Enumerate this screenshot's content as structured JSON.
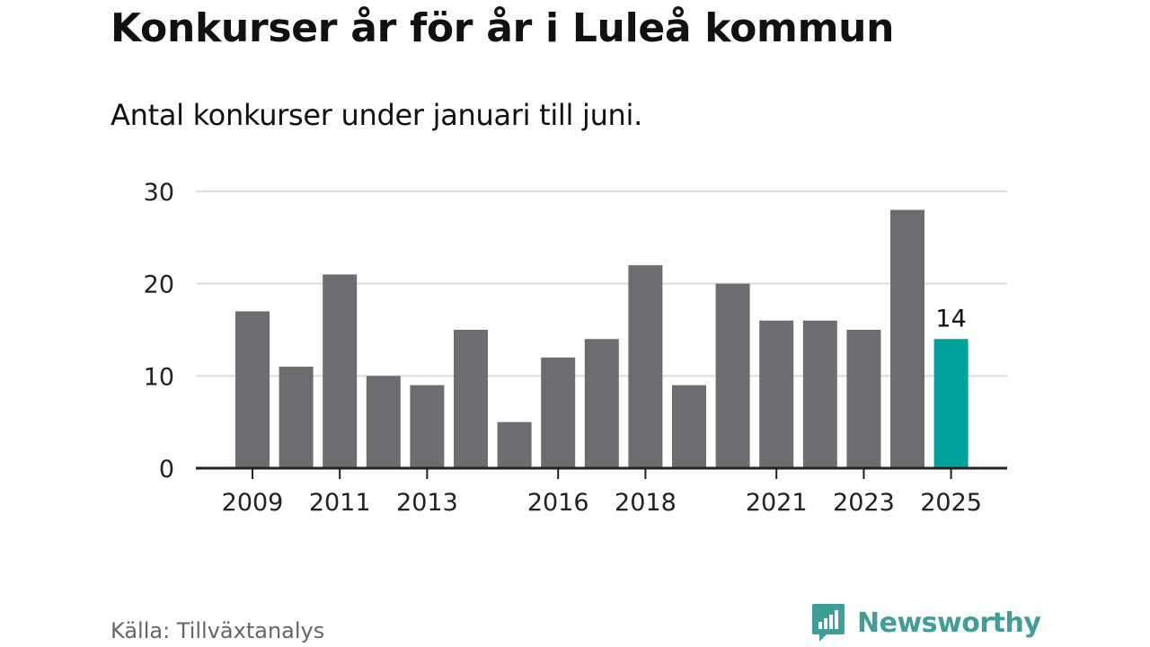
{
  "title": "Konkurser år för år i Luleå kommun",
  "subtitle": "Antal konkurser under januari till juni.",
  "source": "Källa: Tillväxtanalys",
  "brand": {
    "name": "Newsworthy",
    "icon": "speech-bubble-bar-chart-icon",
    "color": "#3f9e98"
  },
  "colors": {
    "bar": "#6d6c71",
    "highlight": "#00a19a",
    "grid": "#dcdcdc",
    "axis": "#222222"
  },
  "chart_data": {
    "type": "bar",
    "categories": [
      "2009",
      "2010",
      "2011",
      "2012",
      "2013",
      "2014",
      "2015",
      "2016",
      "2017",
      "2018",
      "2019",
      "2020",
      "2021",
      "2022",
      "2023",
      "2024",
      "2025"
    ],
    "values": [
      17,
      11,
      21,
      10,
      9,
      15,
      5,
      12,
      14,
      22,
      9,
      20,
      16,
      16,
      15,
      28,
      14
    ],
    "x_tick_labels": [
      "2009",
      "2011",
      "2013",
      "2016",
      "2018",
      "2021",
      "2023",
      "2025"
    ],
    "y_ticks": [
      0,
      10,
      20,
      30
    ],
    "ylim": [
      0,
      30
    ],
    "grid": true,
    "highlight_category": "2025",
    "data_labels": [
      {
        "category": "2025",
        "text": "14"
      }
    ],
    "title": "Konkurser år för år i Luleå kommun",
    "xlabel": "",
    "ylabel": ""
  }
}
